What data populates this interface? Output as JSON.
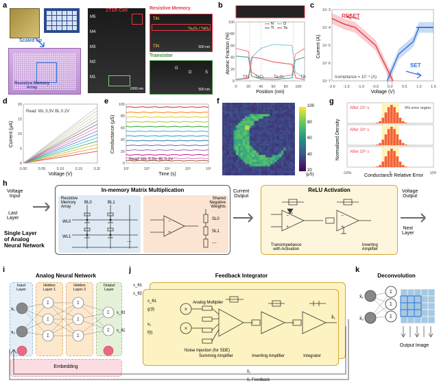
{
  "panel_a": {
    "label": "a",
    "labels": {
      "scaled_up": "Scaled up",
      "cell_title": "1T1R Cell",
      "resmem_title": "Resistive Memory",
      "array_name": "Resistive Memory\nArray",
      "transistor": "Transistor",
      "metals": [
        "M5",
        "M4",
        "M3",
        "M2",
        "M1"
      ],
      "scalebar_left": "1000 nm",
      "scalebar_right_top": "500 nm",
      "scalebar_right_bot": "500 nm",
      "tem_layers": "Ta₂O₅ / TaOₓ",
      "tin1": "TiN",
      "tin2": "TiN",
      "contacts": [
        "G",
        "D",
        "S"
      ]
    }
  },
  "panel_b": {
    "label": "b",
    "y_label": "Atomic Fraction (%)",
    "x_label": "Position (nm)",
    "legend": [
      "N",
      "O",
      "Ti",
      "Ta"
    ],
    "regions": [
      "TiN",
      "TaOₓ",
      "Ta₂O₅",
      "TiN"
    ],
    "x_ticks": [
      0,
      20,
      40,
      60,
      80,
      100
    ],
    "y_ticks": [
      0,
      20,
      40,
      60,
      80,
      100
    ],
    "region_bounds": [
      0,
      22,
      40,
      92,
      110
    ],
    "series": {
      "N": {
        "color": "#f28a8a",
        "pts": [
          [
            0,
            55
          ],
          [
            20,
            50
          ],
          [
            25,
            15
          ],
          [
            40,
            5
          ],
          [
            60,
            5
          ],
          [
            90,
            10
          ],
          [
            95,
            45
          ],
          [
            110,
            55
          ]
        ]
      },
      "O": {
        "color": "#8ecae6",
        "pts": [
          [
            0,
            3
          ],
          [
            20,
            5
          ],
          [
            25,
            40
          ],
          [
            40,
            55
          ],
          [
            60,
            62
          ],
          [
            90,
            60
          ],
          [
            95,
            15
          ],
          [
            110,
            3
          ]
        ]
      },
      "Ti": {
        "color": "#5aa9a0",
        "pts": [
          [
            0,
            42
          ],
          [
            20,
            40
          ],
          [
            25,
            8
          ],
          [
            40,
            3
          ],
          [
            60,
            2
          ],
          [
            90,
            5
          ],
          [
            95,
            35
          ],
          [
            110,
            40
          ]
        ]
      },
      "Ta": {
        "color": "#e86a6a",
        "pts": [
          [
            0,
            2
          ],
          [
            20,
            4
          ],
          [
            26,
            40
          ],
          [
            40,
            38
          ],
          [
            60,
            32
          ],
          [
            90,
            28
          ],
          [
            96,
            5
          ],
          [
            110,
            2
          ]
        ]
      }
    }
  },
  "panel_c": {
    "label": "c",
    "y_label": "Current (A)",
    "x_label": "Voltage (V)",
    "reset": "RESET",
    "set": "SET",
    "compliance": "Icompliance = 10⁻⁴ (A)",
    "x_ticks": [
      -2.0,
      -1.5,
      -1.0,
      -0.5,
      0.0,
      0.5,
      1.0,
      1.5
    ],
    "y_ticks_exp": [
      -3,
      -4,
      -5,
      -6,
      -7
    ],
    "set_color": "#2a6fd6",
    "reset_color": "#e63946",
    "set_curve": [
      [
        -0.1,
        -7
      ],
      [
        0.3,
        -5.5
      ],
      [
        0.8,
        -4.8
      ],
      [
        1.0,
        -4
      ],
      [
        1.3,
        -4
      ],
      [
        1.5,
        -4
      ]
    ],
    "reset_curve": [
      [
        0.1,
        -7
      ],
      [
        -0.5,
        -5
      ],
      [
        -1.2,
        -4
      ],
      [
        -1.6,
        -3.8
      ],
      [
        -2.0,
        -3.5
      ]
    ],
    "band_opacity": 0.25
  },
  "panel_d": {
    "label": "d",
    "y_label": "Current (μA)",
    "x_label": "Voltage (V)",
    "read_cond": "Read: WL 3.3V\nBL 0.2V",
    "x_ticks": [
      0.0,
      0.05,
      0.1,
      0.15,
      0.2
    ],
    "y_ticks": [
      0,
      5,
      10,
      15,
      20
    ],
    "n_lines": 14,
    "slope_min": 20,
    "slope_max": 95,
    "colors": [
      "#d62728",
      "#ff7f0e",
      "#bcbd22",
      "#2ca02c",
      "#17becf",
      "#1f77b4",
      "#9467bd",
      "#e377c2",
      "#8c564b",
      "#7f7f7f",
      "#aec7e8",
      "#ffbb78",
      "#98df8a",
      "#c5b0d5"
    ]
  },
  "panel_e": {
    "label": "e",
    "y_label": "Conductance (μS)",
    "x_label": "Time (s)",
    "read_cond": "Read: WL 3.3V, BL 0.2V",
    "x_ticks_exp": [
      2,
      3,
      4,
      5,
      6
    ],
    "y_ticks": [
      0,
      20,
      40,
      60,
      80,
      100
    ],
    "levels": [
      95,
      86,
      78,
      70,
      62,
      54,
      46,
      38,
      30,
      22,
      14,
      8,
      4
    ],
    "colors": [
      "#d62728",
      "#ff7f0e",
      "#e6c700",
      "#bcbd22",
      "#2ca02c",
      "#17becf",
      "#1fa0b4",
      "#1f77b4",
      "#6a5acd",
      "#9467bd",
      "#c71585",
      "#e377c2",
      "#a0522d"
    ]
  },
  "panel_f": {
    "label": "f",
    "colorbar_label": "(μS)",
    "cb_ticks": [
      20,
      40,
      60,
      80,
      100
    ],
    "grid": 32,
    "cmap": [
      "#440154",
      "#3b528b",
      "#21918c",
      "#5ec962",
      "#fde725"
    ]
  },
  "panel_g": {
    "label": "g",
    "y_label": "Normalized Density",
    "x_label": "Conductance Relative Error",
    "times": [
      "After 10⁴ s",
      "After 10⁵ s",
      "After 10⁶ s"
    ],
    "error_band": "5% error\nregion",
    "x_ticks": [
      "-10%",
      "0",
      "10%"
    ],
    "hist_color": "#f4623a",
    "band_color": "#fff3b0"
  },
  "panel_h": {
    "label": "h",
    "left_label": "Single Layer\nof Analog\nNeural Network",
    "voltage_in": "Voltage\nInput",
    "last_layer": "Last\nLayer",
    "imm_title": "In-memory Matrix Multiplication",
    "resmem": "Resistive\nMemory\nArray",
    "shared_neg": "Shared\nNegative\nWeights",
    "wl": [
      "WL0",
      "WL1"
    ],
    "bl": [
      "BL0",
      "BL1"
    ],
    "sl": [
      "SL0",
      "SL1"
    ],
    "current_out": "Current\nOutput",
    "relu_title": "ReLU Activation",
    "transimp": "Transimpedance\nwith Activation",
    "inv_amp": "Inverting\nAmplifier",
    "voltage_out": "Voltage\nOutput",
    "next_layer": "Next\nLayer",
    "box_colors": {
      "blue": "#6aa3d5",
      "peach": "#f4b28a",
      "gold": "#d6a62f"
    }
  },
  "panel_i": {
    "label": "i",
    "title": "Analog Neural Network",
    "layers": [
      "Input\nLayer",
      "Hidden\nLayer 1",
      "Hidden\nLayer 2",
      "Output\nLayer"
    ],
    "x": [
      "x₁",
      "x₂"
    ],
    "embedding": "Embedding",
    "layer_colors": {
      "input": "#bcd7e8",
      "hidden": "#f8d8a8",
      "output": "#d7e7c5",
      "embed": "#f6c3ce"
    }
  },
  "panel_j": {
    "label": "j",
    "title": "Feedback Integrator",
    "s_theta": [
      "s_θ1",
      "s_θ2"
    ],
    "mult": "Analog\nMultiplier",
    "gprime": "g'(t)",
    "ft": "f(t)",
    "xin": "x₁",
    "noise": "Noise Injection\n(for SDE)",
    "sum_amp": "Summing\nAmplifier",
    "inv_amp": "Inverting\nAmplifier",
    "integrator": "Integrator",
    "out_x1": "x̂₁",
    "fb1": "x̂₁",
    "fb2": "x̂₂ Feedback",
    "box_color": "#d6a62f",
    "fill": "#fdf2c1"
  },
  "panel_k": {
    "label": "k",
    "title": "Deconvolution",
    "x": [
      "x̂₁",
      "x̂₂"
    ],
    "out": "Output\nImage",
    "pixel_color": "#a6c9e2",
    "hl_color": "#2a6fd6"
  },
  "arrows": {
    "color": "#666"
  }
}
